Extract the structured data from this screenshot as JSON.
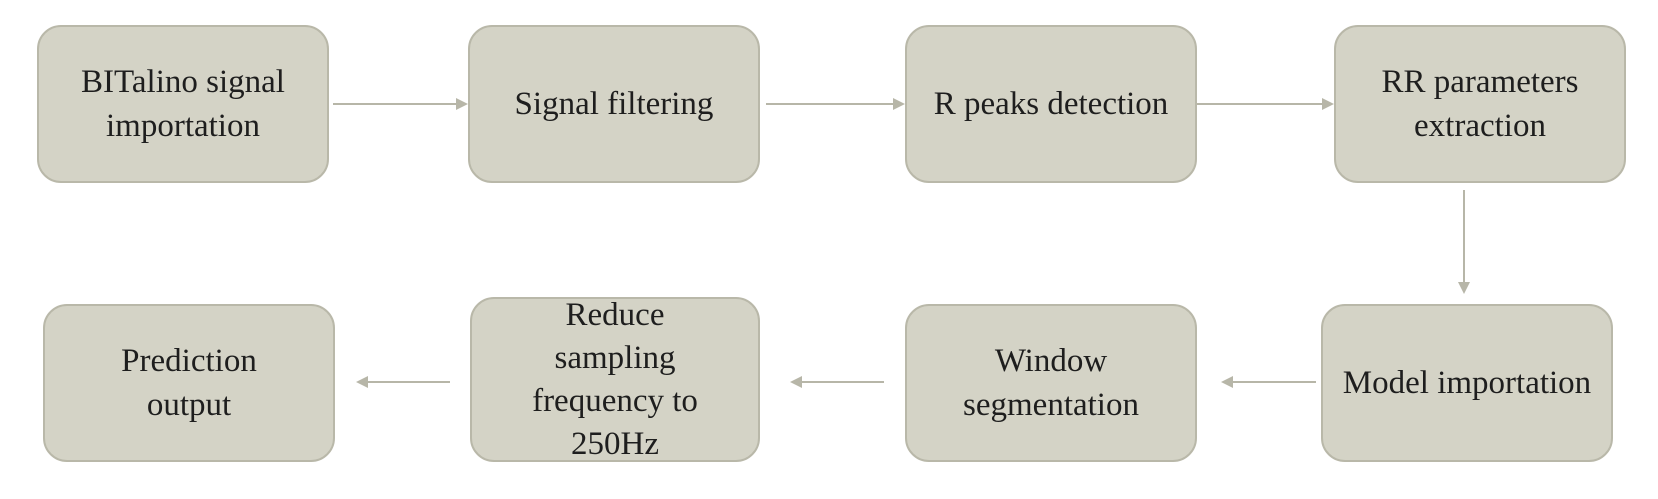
{
  "diagram": {
    "type": "flowchart",
    "colors": {
      "box_fill": "#d4d3c6",
      "box_border": "#b9b8a9",
      "arrow": "#b7b6a8",
      "text": "#1e1e1e"
    },
    "steps": [
      {
        "id": "bitalino",
        "label": "BITalino signal importation"
      },
      {
        "id": "filtering",
        "label": "Signal filtering"
      },
      {
        "id": "rpeaks",
        "label": "R peaks detection"
      },
      {
        "id": "rrparams",
        "label": "RR parameters extraction"
      },
      {
        "id": "model",
        "label": "Model importation"
      },
      {
        "id": "window",
        "label": "Window segmentation"
      },
      {
        "id": "reduce",
        "label": "Reduce sampling frequency to 250Hz"
      },
      {
        "id": "prediction",
        "label": "Prediction output"
      }
    ],
    "edges": [
      {
        "from": "bitalino",
        "to": "filtering"
      },
      {
        "from": "filtering",
        "to": "rpeaks"
      },
      {
        "from": "rpeaks",
        "to": "rrparams"
      },
      {
        "from": "rrparams",
        "to": "model"
      },
      {
        "from": "model",
        "to": "window"
      },
      {
        "from": "window",
        "to": "reduce"
      },
      {
        "from": "reduce",
        "to": "prediction"
      }
    ]
  }
}
